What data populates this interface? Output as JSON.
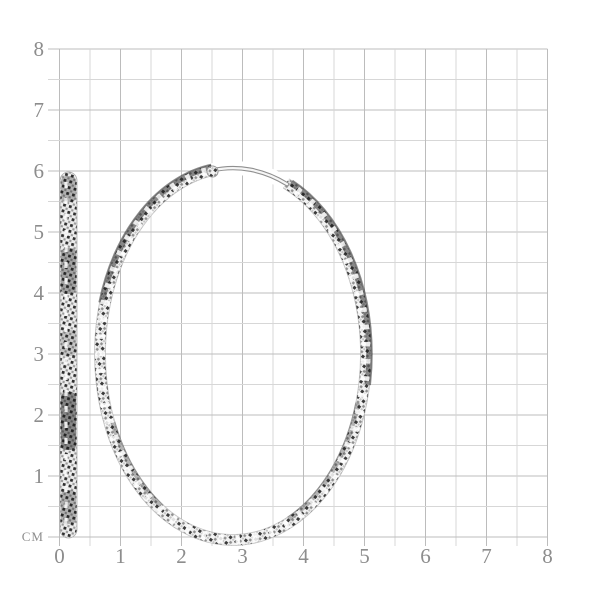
{
  "page": {
    "background": "#ffffff"
  },
  "ruler": {
    "unit_label": "СМ",
    "x_labels": [
      "0",
      "1",
      "2",
      "3",
      "4",
      "5",
      "6",
      "7",
      "8"
    ],
    "y_labels": [
      "8",
      "7",
      "6",
      "5",
      "4",
      "3",
      "2",
      "1"
    ],
    "axis_min_cm": 0,
    "axis_max_cm": 8,
    "minor_step_cm": 0.5,
    "colors": {
      "grid_major": "#bcbcbc",
      "grid_minor": "#d7d7d7",
      "labels": "#8d8d8d"
    }
  },
  "product": {
    "figures": [
      {
        "name": "hoop-earring-side-profile"
      },
      {
        "name": "hoop-earring-front-view"
      }
    ],
    "finish": "diamond-cut-textured-silver"
  }
}
